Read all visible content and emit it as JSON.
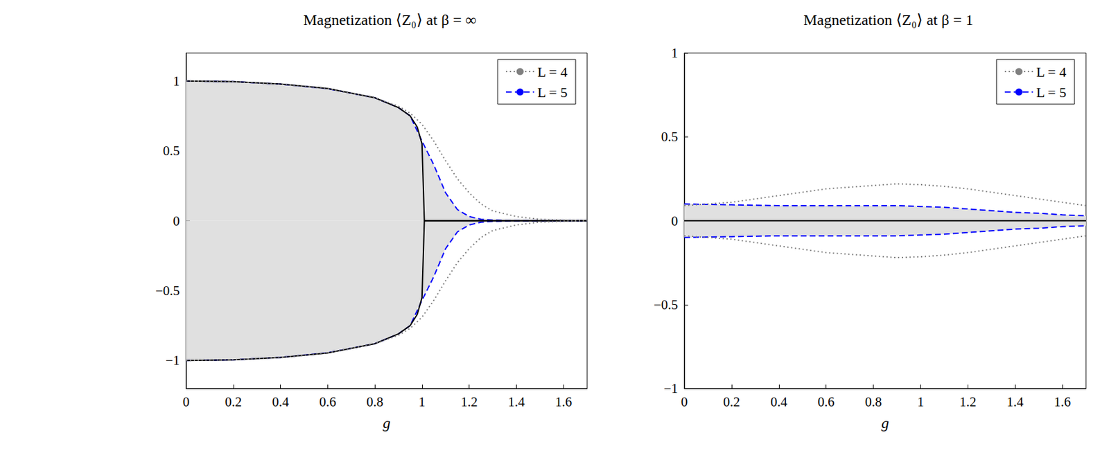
{
  "chart_data": [
    {
      "type": "line",
      "title": "Magnetization ⟨Z₀⟩ at β = ∞",
      "x_label": "g",
      "xlim": [
        0,
        1.7
      ],
      "xticks": [
        0,
        0.2,
        0.4,
        0.6,
        0.8,
        1,
        1.2,
        1.4,
        1.6
      ],
      "ylim": [
        -1.2,
        1.2
      ],
      "yticks": [
        {
          "value": -1,
          "label": "−1"
        },
        {
          "value": -0.5,
          "label": "−0.5"
        },
        0,
        0.5,
        1
      ],
      "grid": false,
      "legend": "upper right",
      "series": [
        {
          "color": "#000000",
          "line_style": "solid",
          "x": [
            0,
            0.2,
            0.4,
            0.6,
            0.8,
            0.9,
            0.95,
            0.98,
            0.99,
            1.0,
            1.01,
            1.2,
            1.4,
            1.7
          ],
          "values": [
            1,
            0.995,
            0.978,
            0.946,
            0.88,
            0.81,
            0.75,
            0.67,
            0.61,
            0.55,
            0,
            0,
            0,
            0
          ]
        },
        {
          "color": "#000000",
          "line_style": "solid",
          "x": [
            0,
            0.2,
            0.4,
            0.6,
            0.8,
            0.9,
            0.95,
            0.98,
            0.99,
            1.0,
            1.01,
            1.2,
            1.4,
            1.7
          ],
          "values": [
            -1,
            -0.995,
            -0.978,
            -0.946,
            -0.88,
            -0.81,
            -0.75,
            -0.67,
            -0.61,
            -0.55,
            0,
            0,
            0,
            0
          ]
        },
        {
          "name": "L = 4",
          "color": "#808080",
          "line_style": "dotted",
          "x": [
            0,
            0.2,
            0.4,
            0.6,
            0.8,
            0.9,
            0.95,
            1.0,
            1.05,
            1.1,
            1.15,
            1.2,
            1.25,
            1.3,
            1.4,
            1.5,
            1.6,
            1.7
          ],
          "values": [
            1,
            0.995,
            0.978,
            0.945,
            0.88,
            0.82,
            0.77,
            0.69,
            0.57,
            0.43,
            0.3,
            0.2,
            0.12,
            0.07,
            0.03,
            0.01,
            0.005,
            0
          ]
        },
        {
          "name": "L = 4",
          "color": "#808080",
          "line_style": "dotted",
          "x": [
            0,
            0.2,
            0.4,
            0.6,
            0.8,
            0.9,
            0.95,
            1.0,
            1.05,
            1.1,
            1.15,
            1.2,
            1.25,
            1.3,
            1.4,
            1.5,
            1.6,
            1.7
          ],
          "values": [
            -1,
            -0.995,
            -0.978,
            -0.945,
            -0.88,
            -0.82,
            -0.77,
            -0.69,
            -0.57,
            -0.43,
            -0.3,
            -0.2,
            -0.12,
            -0.07,
            -0.03,
            -0.01,
            -0.005,
            0
          ]
        },
        {
          "name": "L = 5",
          "color": "#0000ff",
          "line_style": "dashed",
          "x": [
            0,
            0.2,
            0.4,
            0.6,
            0.8,
            0.9,
            0.95,
            1.0,
            1.05,
            1.1,
            1.15,
            1.2,
            1.25,
            1.3,
            1.4,
            1.5,
            1.6,
            1.7
          ],
          "values": [
            1,
            0.995,
            0.978,
            0.945,
            0.88,
            0.81,
            0.75,
            0.57,
            0.4,
            0.2,
            0.08,
            0.03,
            0.01,
            0.005,
            0,
            0,
            0,
            0
          ]
        },
        {
          "name": "L = 5",
          "color": "#0000ff",
          "line_style": "dashed",
          "x": [
            0,
            0.2,
            0.4,
            0.6,
            0.8,
            0.9,
            0.95,
            1.0,
            1.05,
            1.1,
            1.15,
            1.2,
            1.25,
            1.3,
            1.4,
            1.5,
            1.6,
            1.7
          ],
          "values": [
            -1,
            -0.995,
            -0.978,
            -0.945,
            -0.88,
            -0.81,
            -0.75,
            -0.57,
            -0.4,
            -0.2,
            -0.08,
            -0.03,
            -0.01,
            -0.005,
            0,
            0,
            0,
            0
          ]
        }
      ]
    },
    {
      "type": "line",
      "title": "Magnetization ⟨Z₀⟩ at β = 1",
      "x_label": "g",
      "xlim": [
        0,
        1.7
      ],
      "xticks": [
        0,
        0.2,
        0.4,
        0.6,
        0.8,
        1,
        1.2,
        1.4,
        1.6
      ],
      "ylim": [
        -1,
        1
      ],
      "yticks": [
        {
          "value": -1,
          "label": "−1"
        },
        {
          "value": -0.5,
          "label": "−0.5"
        },
        0,
        0.5,
        1
      ],
      "grid": false,
      "legend": "upper right",
      "series": [
        {
          "color": "#000000",
          "line_style": "solid",
          "x": [
            0,
            1.7
          ],
          "values": [
            0,
            0
          ]
        },
        {
          "name": "L = 4",
          "color": "#808080",
          "line_style": "dotted",
          "x": [
            0,
            0.2,
            0.4,
            0.6,
            0.8,
            0.9,
            1.0,
            1.1,
            1.2,
            1.3,
            1.4,
            1.5,
            1.6,
            1.7
          ],
          "values": [
            0.09,
            0.11,
            0.15,
            0.19,
            0.21,
            0.22,
            0.215,
            0.205,
            0.19,
            0.17,
            0.15,
            0.13,
            0.11,
            0.09
          ]
        },
        {
          "name": "L = 4",
          "color": "#808080",
          "line_style": "dotted",
          "x": [
            0,
            0.2,
            0.4,
            0.6,
            0.8,
            0.9,
            1.0,
            1.1,
            1.2,
            1.3,
            1.4,
            1.5,
            1.6,
            1.7
          ],
          "values": [
            -0.09,
            -0.11,
            -0.15,
            -0.19,
            -0.21,
            -0.22,
            -0.215,
            -0.205,
            -0.19,
            -0.17,
            -0.15,
            -0.13,
            -0.11,
            -0.09
          ]
        },
        {
          "name": "L = 5",
          "color": "#0000ff",
          "line_style": "dashed",
          "x": [
            0,
            0.2,
            0.4,
            0.6,
            0.8,
            0.9,
            1.0,
            1.1,
            1.2,
            1.3,
            1.4,
            1.5,
            1.6,
            1.7
          ],
          "values": [
            0.1,
            0.095,
            0.09,
            0.09,
            0.09,
            0.09,
            0.085,
            0.08,
            0.07,
            0.06,
            0.05,
            0.045,
            0.035,
            0.03
          ]
        },
        {
          "name": "L = 5",
          "color": "#0000ff",
          "line_style": "dashed",
          "x": [
            0,
            0.2,
            0.4,
            0.6,
            0.8,
            0.9,
            1.0,
            1.1,
            1.2,
            1.3,
            1.4,
            1.5,
            1.6,
            1.7
          ],
          "values": [
            -0.1,
            -0.095,
            -0.09,
            -0.09,
            -0.09,
            -0.09,
            -0.085,
            -0.08,
            -0.07,
            -0.06,
            -0.05,
            -0.045,
            -0.035,
            -0.03
          ]
        }
      ]
    }
  ]
}
